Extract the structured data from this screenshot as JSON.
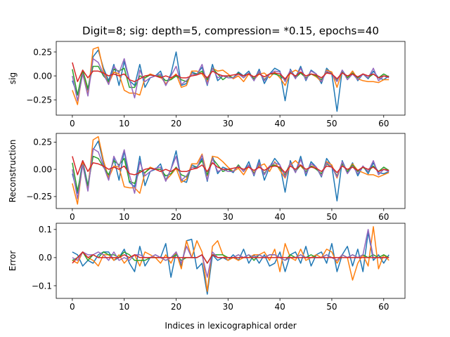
{
  "figure": {
    "title": "Digit=8; sig: depth=5, compression= *0.15, epochs=40",
    "xlabel": "Indices in lexicographical order"
  },
  "colors": [
    "#1f77b4",
    "#ff7f0e",
    "#2ca02c",
    "#9467bd",
    "#d62728"
  ],
  "chart_data": [
    {
      "type": "line",
      "ylabel": "sig",
      "xlim": [
        -3.1,
        64.1
      ],
      "ylim": [
        -0.41,
        0.36
      ],
      "xticks": [
        0,
        10,
        20,
        30,
        40,
        50,
        60
      ],
      "yticks": [
        -0.25,
        0.0,
        0.25
      ],
      "ytick_labels": [
        "−0.25",
        "0.00",
        "0.25"
      ],
      "x_start": 0,
      "series": [
        {
          "color": "#1f77b4",
          "values": [
            -0.05,
            -0.2,
            0.05,
            -0.15,
            0.2,
            0.27,
            0.08,
            -0.05,
            0.12,
            -0.1,
            0.15,
            -0.05,
            -0.1,
            0.12,
            -0.12,
            -0.02,
            0.0,
            0.05,
            -0.1,
            0.02,
            0.25,
            -0.1,
            -0.08,
            0.04,
            0.02,
            0.09,
            -0.1,
            0.12,
            -0.05,
            0.0,
            0.0,
            -0.02,
            0.04,
            0.0,
            0.05,
            -0.05,
            0.07,
            -0.08,
            0.02,
            0.08,
            0.05,
            -0.26,
            0.07,
            -0.02,
            0.1,
            -0.05,
            0.06,
            0.02,
            -0.08,
            0.08,
            0.02,
            -0.37,
            0.06,
            -0.02,
            0.05,
            -0.05,
            0.02,
            -0.03,
            0.05,
            -0.02,
            -0.04,
            0.0
          ]
        },
        {
          "color": "#ff7f0e",
          "values": [
            -0.15,
            -0.3,
            0.05,
            -0.2,
            0.28,
            0.3,
            0.05,
            -0.08,
            0.04,
            0.02,
            -0.15,
            -0.18,
            -0.18,
            -0.2,
            -0.02,
            0.02,
            0.0,
            -0.01,
            -0.08,
            -0.03,
            0.02,
            -0.12,
            -0.1,
            0.05,
            0.05,
            0.02,
            -0.06,
            0.08,
            0.05,
            0.06,
            0.02,
            -0.03,
            0.0,
            -0.06,
            0.02,
            -0.04,
            0.02,
            0.03,
            -0.02,
            0.04,
            -0.02,
            -0.1,
            0.03,
            0.06,
            0.03,
            -0.02,
            0.02,
            -0.01,
            -0.06,
            0.06,
            0.04,
            -0.12,
            0.05,
            -0.02,
            0.05,
            -0.03,
            -0.05,
            -0.06,
            -0.06,
            -0.07,
            -0.04,
            -0.04
          ]
        },
        {
          "color": "#2ca02c",
          "values": [
            0.07,
            -0.2,
            0.06,
            -0.13,
            0.1,
            0.1,
            0.0,
            -0.06,
            0.07,
            0.05,
            0.08,
            -0.12,
            -0.12,
            0.0,
            -0.02,
            0.01,
            0.0,
            0.0,
            -0.05,
            -0.04,
            0.0,
            -0.04,
            -0.06,
            0.02,
            0.02,
            0.05,
            -0.04,
            0.08,
            0.02,
            -0.04,
            0.0,
            -0.02,
            0.03,
            -0.02,
            0.03,
            -0.03,
            0.04,
            -0.04,
            0.02,
            0.02,
            0.0,
            -0.04,
            0.05,
            -0.02,
            0.03,
            -0.02,
            0.02,
            0.0,
            -0.04,
            0.04,
            0.02,
            -0.05,
            0.04,
            -0.02,
            0.03,
            -0.02,
            0.02,
            -0.02,
            0.02,
            -0.02,
            0.02,
            -0.01
          ]
        },
        {
          "color": "#9467bd",
          "values": [
            0.0,
            -0.26,
            0.02,
            -0.21,
            0.18,
            0.14,
            0.02,
            -0.09,
            0.1,
            0.03,
            0.18,
            -0.04,
            -0.23,
            0.06,
            -0.06,
            -0.02,
            0.0,
            0.02,
            -0.1,
            0.0,
            0.1,
            -0.09,
            -0.05,
            0.02,
            0.01,
            0.12,
            -0.09,
            0.08,
            -0.02,
            0.0,
            -0.02,
            -0.02,
            0.02,
            -0.02,
            0.03,
            -0.05,
            0.05,
            -0.05,
            0.02,
            0.05,
            0.04,
            -0.06,
            0.06,
            -0.03,
            0.08,
            -0.04,
            0.05,
            0.02,
            -0.06,
            0.05,
            0.02,
            -0.06,
            0.06,
            -0.04,
            0.02,
            -0.04,
            0.02,
            -0.02,
            0.08,
            -0.05,
            0.0,
            -0.02
          ]
        },
        {
          "color": "#d62728",
          "values": [
            0.14,
            -0.06,
            0.06,
            -0.02,
            0.05,
            0.05,
            0.03,
            0.0,
            0.02,
            0.0,
            0.02,
            -0.04,
            -0.06,
            -0.03,
            0.0,
            0.01,
            0.0,
            -0.02,
            0.0,
            -0.02,
            0.01,
            -0.02,
            -0.02,
            0.0,
            0.01,
            0.03,
            -0.02,
            0.05,
            0.02,
            0.0,
            0.0,
            0.01,
            0.02,
            0.0,
            0.02,
            -0.01,
            0.02,
            -0.01,
            0.02,
            0.03,
            0.02,
            -0.03,
            0.03,
            0.0,
            0.04,
            0.0,
            0.02,
            0.01,
            -0.02,
            0.03,
            0.02,
            -0.03,
            0.03,
            0.0,
            0.02,
            -0.01,
            0.02,
            0.0,
            0.02,
            -0.02,
            0.0,
            -0.01
          ]
        }
      ]
    },
    {
      "type": "line",
      "ylabel": "Reconstruction",
      "xlim": [
        -3.1,
        64.1
      ],
      "ylim": [
        -0.36,
        0.33
      ],
      "xticks": [
        0,
        10,
        20,
        30,
        40,
        50,
        60
      ],
      "yticks": [
        -0.25,
        0.0,
        0.25
      ],
      "ytick_labels": [
        "−0.25",
        "0.00",
        "0.25"
      ],
      "x_start": 0,
      "series": [
        {
          "color": "#1f77b4",
          "values": [
            -0.04,
            -0.22,
            0.08,
            -0.15,
            0.18,
            0.26,
            0.06,
            -0.08,
            0.1,
            -0.1,
            0.17,
            -0.12,
            -0.16,
            0.12,
            -0.15,
            -0.02,
            0.0,
            0.05,
            -0.1,
            0.0,
            0.17,
            -0.1,
            -0.12,
            0.04,
            0.02,
            0.1,
            -0.11,
            0.12,
            -0.04,
            0.02,
            0.0,
            -0.03,
            0.04,
            -0.02,
            0.07,
            -0.06,
            0.09,
            -0.1,
            0.02,
            0.1,
            0.04,
            -0.21,
            0.08,
            -0.03,
            0.12,
            -0.06,
            0.07,
            0.02,
            -0.07,
            0.1,
            0.03,
            -0.29,
            0.08,
            -0.03,
            0.06,
            -0.06,
            0.03,
            -0.04,
            0.06,
            -0.03,
            -0.04,
            -0.02
          ]
        },
        {
          "color": "#ff7f0e",
          "values": [
            -0.13,
            -0.32,
            0.06,
            -0.19,
            0.27,
            0.3,
            0.08,
            -0.08,
            0.03,
            0.02,
            -0.16,
            -0.17,
            -0.17,
            -0.22,
            -0.03,
            0.02,
            0.0,
            0.0,
            -0.1,
            -0.05,
            0.01,
            -0.12,
            -0.09,
            0.05,
            0.05,
            0.14,
            -0.06,
            0.12,
            0.11,
            0.07,
            0.02,
            -0.02,
            0.01,
            -0.05,
            0.03,
            -0.03,
            0.03,
            0.05,
            -0.02,
            0.07,
            -0.01,
            -0.08,
            0.04,
            0.08,
            0.03,
            -0.02,
            0.03,
            0.02,
            -0.06,
            0.07,
            0.04,
            -0.08,
            0.06,
            -0.02,
            0.05,
            -0.01,
            -0.03,
            -0.05,
            -0.05,
            -0.07,
            -0.05,
            -0.03
          ]
        },
        {
          "color": "#2ca02c",
          "values": [
            0.06,
            -0.2,
            0.04,
            -0.15,
            0.12,
            0.1,
            0.02,
            -0.05,
            0.08,
            0.04,
            0.1,
            -0.11,
            -0.13,
            -0.01,
            -0.03,
            0.01,
            0.0,
            0.0,
            -0.06,
            -0.04,
            0.02,
            -0.05,
            -0.07,
            0.02,
            0.02,
            0.08,
            -0.05,
            0.1,
            0.04,
            -0.02,
            0.0,
            -0.02,
            0.04,
            -0.02,
            0.04,
            -0.04,
            0.05,
            -0.04,
            0.03,
            0.04,
            0.01,
            -0.05,
            0.06,
            -0.02,
            0.04,
            -0.02,
            0.03,
            0.0,
            -0.04,
            0.05,
            0.02,
            -0.06,
            0.05,
            -0.02,
            0.04,
            -0.02,
            0.02,
            -0.02,
            0.03,
            -0.02,
            0.02,
            -0.01
          ]
        },
        {
          "color": "#9467bd",
          "values": [
            0.0,
            -0.27,
            0.04,
            -0.2,
            0.19,
            0.16,
            0.03,
            -0.1,
            0.12,
            0.02,
            0.18,
            -0.05,
            -0.22,
            0.07,
            -0.06,
            -0.02,
            0.01,
            0.02,
            -0.11,
            0.0,
            0.12,
            -0.1,
            -0.06,
            0.02,
            0.01,
            0.13,
            -0.1,
            0.1,
            -0.02,
            0.0,
            -0.02,
            -0.02,
            0.03,
            -0.02,
            0.04,
            -0.05,
            0.06,
            -0.05,
            0.03,
            0.06,
            0.04,
            -0.07,
            0.06,
            -0.03,
            0.09,
            -0.04,
            0.05,
            0.02,
            -0.06,
            0.06,
            0.02,
            -0.07,
            0.07,
            -0.04,
            0.03,
            -0.04,
            0.03,
            -0.02,
            0.08,
            -0.05,
            0.0,
            -0.02
          ]
        },
        {
          "color": "#d62728",
          "values": [
            0.12,
            -0.05,
            0.08,
            -0.02,
            0.06,
            0.05,
            0.03,
            0.0,
            0.02,
            0.0,
            0.03,
            -0.04,
            -0.05,
            -0.03,
            0.0,
            0.01,
            0.0,
            -0.02,
            0.0,
            -0.02,
            0.01,
            -0.02,
            -0.02,
            0.0,
            0.01,
            0.04,
            -0.02,
            0.06,
            0.02,
            0.0,
            0.0,
            0.01,
            0.02,
            0.0,
            0.02,
            -0.01,
            0.02,
            -0.01,
            0.02,
            0.03,
            0.02,
            -0.03,
            0.03,
            0.0,
            0.04,
            0.0,
            0.02,
            0.01,
            -0.02,
            0.03,
            0.02,
            -0.03,
            0.03,
            0.0,
            0.02,
            -0.01,
            0.02,
            0.0,
            0.02,
            -0.02,
            0.0,
            -0.01
          ]
        }
      ]
    },
    {
      "type": "line",
      "ylabel": "Error",
      "xlim": [
        -3.1,
        64.1
      ],
      "ylim": [
        -0.145,
        0.122
      ],
      "xticks": [
        0,
        10,
        20,
        30,
        40,
        50,
        60
      ],
      "yticks": [
        -0.1,
        0.0,
        0.1
      ],
      "ytick_labels": [
        "−0.1",
        "0.0",
        "0.1"
      ],
      "x_start": 0,
      "series": [
        {
          "color": "#1f77b4",
          "values": [
            0.02,
            0.01,
            -0.03,
            -0.01,
            -0.02,
            0.01,
            0.02,
            0.02,
            -0.01,
            0.0,
            0.03,
            -0.02,
            -0.05,
            0.04,
            -0.03,
            0.0,
            0.01,
            0.0,
            0.05,
            -0.07,
            0.02,
            -0.03,
            0.06,
            0.065,
            -0.04,
            -0.02,
            -0.13,
            0.01,
            -0.01,
            0.0,
            -0.01,
            0.01,
            -0.01,
            0.03,
            -0.02,
            0.01,
            -0.02,
            0.01,
            -0.03,
            -0.02,
            0.02,
            -0.05,
            0.01,
            0.02,
            -0.02,
            0.04,
            -0.03,
            0.01,
            0.02,
            -0.02,
            0.05,
            -0.05,
            0.01,
            0.04,
            -0.03,
            0.03,
            -0.05,
            0.09,
            -0.01,
            0.01,
            -0.02,
            0.01
          ]
        },
        {
          "color": "#ff7f0e",
          "values": [
            -0.01,
            -0.02,
            0.02,
            0.0,
            -0.01,
            -0.03,
            0.01,
            0.01,
            -0.01,
            0.01,
            -0.02,
            0.0,
            0.01,
            -0.03,
            0.02,
            0.01,
            0.0,
            -0.02,
            0.01,
            -0.02,
            0.02,
            -0.04,
            0.06,
            0.0,
            0.06,
            0.02,
            -0.12,
            0.04,
            0.06,
            0.01,
            -0.01,
            0.0,
            -0.01,
            0.0,
            0.0,
            0.01,
            0.01,
            0.02,
            -0.01,
            0.03,
            -0.05,
            0.05,
            0.0,
            -0.01,
            0.03,
            -0.01,
            0.0,
            0.01,
            0.0,
            0.03,
            0.02,
            -0.02,
            0.01,
            0.0,
            -0.08,
            -0.02,
            0.01,
            -0.03,
            0.11,
            -0.04,
            0.01,
            -0.01
          ]
        },
        {
          "color": "#2ca02c",
          "values": [
            -0.01,
            0.0,
            0.02,
            -0.01,
            0.01,
            0.0,
            0.02,
            0.01,
            0.01,
            0.0,
            0.02,
            0.01,
            -0.01,
            -0.01,
            -0.01,
            0.0,
            0.0,
            0.0,
            -0.01,
            0.0,
            0.01,
            -0.01,
            0.0,
            0.0,
            0.0,
            0.01,
            -0.02,
            0.01,
            0.01,
            0.01,
            0.0,
            0.0,
            0.01,
            0.0,
            0.01,
            -0.01,
            0.01,
            0.0,
            0.01,
            0.01,
            0.0,
            -0.01,
            0.01,
            0.0,
            0.01,
            0.0,
            0.01,
            0.0,
            0.0,
            0.01,
            0.0,
            -0.01,
            0.01,
            0.0,
            0.01,
            0.0,
            0.01,
            0.0,
            0.01,
            0.0,
            0.01,
            0.0
          ]
        },
        {
          "color": "#9467bd",
          "values": [
            0.0,
            -0.01,
            0.02,
            0.01,
            0.01,
            0.02,
            0.01,
            -0.01,
            0.02,
            -0.01,
            0.0,
            -0.01,
            0.01,
            0.01,
            0.0,
            0.0,
            0.01,
            0.0,
            -0.01,
            0.0,
            0.02,
            -0.02,
            0.04,
            0.0,
            0.0,
            0.01,
            -0.07,
            0.02,
            0.0,
            0.0,
            0.0,
            0.0,
            0.01,
            0.0,
            0.01,
            0.0,
            0.01,
            0.0,
            0.01,
            0.01,
            0.0,
            -0.01,
            0.0,
            0.0,
            0.01,
            0.0,
            0.0,
            0.0,
            0.0,
            0.01,
            0.0,
            -0.01,
            0.01,
            0.0,
            0.01,
            0.0,
            0.01,
            0.1,
            0.0,
            0.0,
            0.0,
            0.0
          ]
        },
        {
          "color": "#d62728",
          "values": [
            -0.02,
            0.0,
            0.02,
            0.0,
            0.01,
            0.0,
            0.0,
            0.0,
            0.0,
            0.0,
            0.01,
            0.0,
            0.01,
            0.0,
            0.0,
            0.0,
            0.0,
            0.0,
            0.0,
            0.0,
            0.0,
            0.0,
            0.0,
            0.0,
            0.0,
            0.01,
            -0.02,
            0.01,
            0.0,
            0.0,
            0.0,
            0.0,
            0.0,
            0.0,
            0.0,
            0.0,
            0.0,
            0.0,
            0.0,
            0.0,
            0.0,
            0.0,
            0.0,
            0.0,
            0.0,
            0.0,
            0.0,
            0.0,
            0.0,
            0.0,
            0.0,
            0.0,
            0.0,
            0.0,
            0.0,
            0.0,
            0.0,
            0.0,
            0.0,
            0.0,
            0.0,
            0.0
          ]
        }
      ]
    }
  ]
}
